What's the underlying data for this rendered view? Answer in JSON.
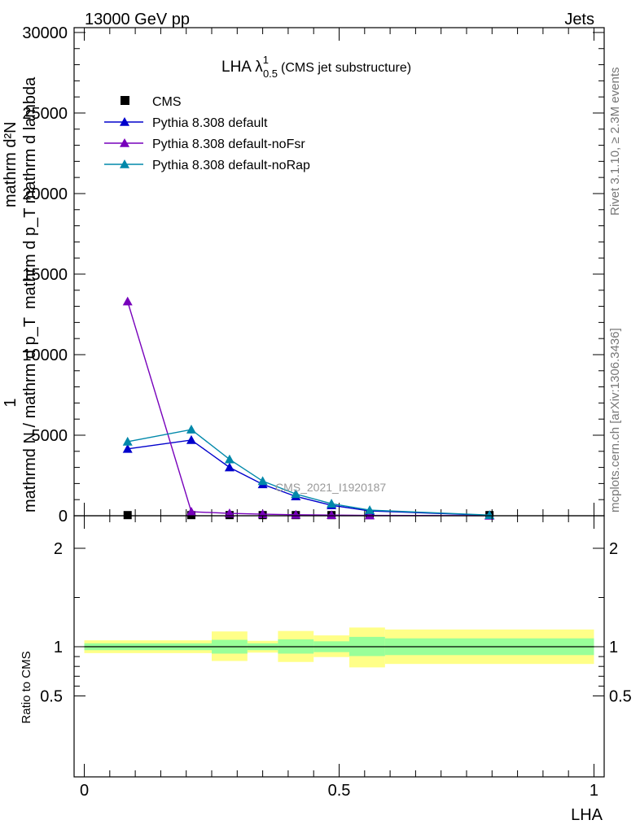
{
  "header": {
    "left": "13000 GeV pp",
    "right": "Jets"
  },
  "side_text": {
    "rivet": "Rivet 3.1.10, ≥ 2.3M events",
    "mcplots": "mcplots.cern.ch [arXiv:1306.3436]"
  },
  "chart_data": [
    {
      "type": "line",
      "title_main": "LHA λ",
      "title_sup": "1",
      "title_sub": "0.5",
      "title_rest": "(CMS jet substructure)",
      "watermark": "CMS_2021_I1920187",
      "ylabel_top": "mathrm d²N",
      "ylabel_bottom": "mathrm d p_T mathrm d lambda",
      "ylabel_prefix_top": "1",
      "ylabel_prefix_bottom": "mathrmd N / mathrm d p_T",
      "ylim": [
        0,
        30300
      ],
      "yticks": [
        0,
        5000,
        10000,
        15000,
        20000,
        25000,
        30000
      ],
      "ytick_labels": [
        "0",
        "5000",
        "10000",
        "15000",
        "20000",
        "25000",
        "30000"
      ],
      "xlim": [
        -0.02,
        1.02
      ],
      "legend_position": "top-left",
      "series": [
        {
          "name": "CMS",
          "marker": "square",
          "color": "#000000",
          "x": [
            0.085,
            0.21,
            0.285,
            0.35,
            0.415,
            0.485,
            0.56,
            0.795
          ],
          "y": [
            40,
            40,
            40,
            40,
            40,
            40,
            40,
            40
          ]
        },
        {
          "name": "Pythia 8.308 default",
          "marker": "triangle",
          "color": "#0000cc",
          "x": [
            0.085,
            0.21,
            0.285,
            0.35,
            0.415,
            0.485,
            0.56,
            0.795
          ],
          "y": [
            4150,
            4700,
            3000,
            1950,
            1200,
            650,
            300,
            30
          ]
        },
        {
          "name": "Pythia 8.308 default-noFsr",
          "marker": "triangle",
          "color": "#7700bb",
          "x": [
            0.085,
            0.21,
            0.285,
            0.35,
            0.415,
            0.485,
            0.56,
            0.795
          ],
          "y": [
            13300,
            250,
            150,
            100,
            60,
            40,
            20,
            5
          ]
        },
        {
          "name": "Pythia 8.308 default-noRap",
          "marker": "triangle",
          "color": "#0088aa",
          "x": [
            0.085,
            0.21,
            0.285,
            0.35,
            0.415,
            0.485,
            0.56,
            0.795
          ],
          "y": [
            4600,
            5350,
            3500,
            2150,
            1350,
            750,
            350,
            40
          ]
        }
      ]
    },
    {
      "type": "area",
      "ylabel": "Ratio to CMS",
      "xlabel": "LHA",
      "ylim": [
        0.33,
        2.25
      ],
      "yticks": [
        0.5,
        1,
        2
      ],
      "ytick_labels": [
        "0.5",
        "1",
        "2"
      ],
      "xticks": [
        0,
        0.5,
        1
      ],
      "xtick_labels": [
        "0",
        "0.5",
        "1"
      ],
      "xlim": [
        -0.02,
        1.02
      ],
      "band_colors": {
        "outer": "#ffff88",
        "inner": "#99ff99",
        "line": "#000000"
      },
      "bins": [
        {
          "x0": 0.0,
          "x1": 0.25,
          "inner": [
            0.965,
            1.035
          ],
          "outer": [
            0.935,
            1.065
          ]
        },
        {
          "x0": 0.25,
          "x1": 0.32,
          "inner": [
            0.93,
            1.07
          ],
          "outer": [
            0.855,
            1.155
          ]
        },
        {
          "x0": 0.32,
          "x1": 0.38,
          "inner": [
            0.965,
            1.035
          ],
          "outer": [
            0.94,
            1.06
          ]
        },
        {
          "x0": 0.38,
          "x1": 0.45,
          "inner": [
            0.93,
            1.075
          ],
          "outer": [
            0.845,
            1.16
          ]
        },
        {
          "x0": 0.45,
          "x1": 0.52,
          "inner": [
            0.945,
            1.055
          ],
          "outer": [
            0.895,
            1.115
          ]
        },
        {
          "x0": 0.52,
          "x1": 0.59,
          "inner": [
            0.905,
            1.1
          ],
          "outer": [
            0.79,
            1.195
          ]
        },
        {
          "x0": 0.59,
          "x1": 1.0,
          "inner": [
            0.915,
            1.085
          ],
          "outer": [
            0.825,
            1.175
          ]
        }
      ]
    }
  ]
}
